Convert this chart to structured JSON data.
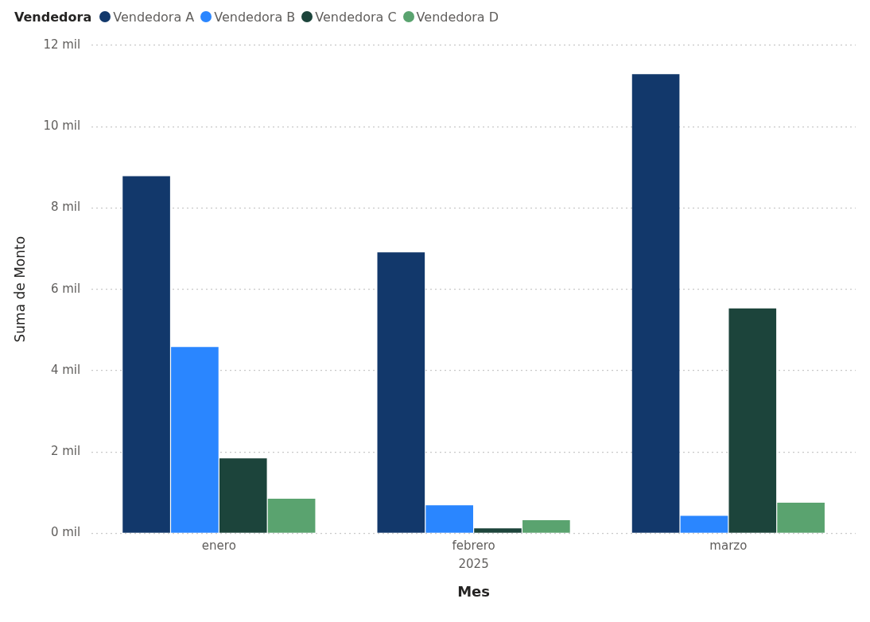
{
  "chart_data": {
    "type": "bar",
    "xlabel": "Mes",
    "ylabel": "Suma de Monto",
    "legend_title": "Vendedora",
    "legend": "top left",
    "grid": "y",
    "categories": [
      "enero",
      "febrero",
      "marzo"
    ],
    "annotations": [
      "2025"
    ],
    "ylim": [
      0,
      12
    ],
    "yticks": [
      {
        "value": 0,
        "label": "0 mil"
      },
      {
        "value": 2,
        "label": "2 mil"
      },
      {
        "value": 4,
        "label": "4 mil"
      },
      {
        "value": 6,
        "label": "6 mil"
      },
      {
        "value": 8,
        "label": "8 mil"
      },
      {
        "value": 10,
        "label": "10 mil"
      },
      {
        "value": 12,
        "label": "12 mil"
      }
    ],
    "series": [
      {
        "name": "Vendedora A",
        "color": "#12386b",
        "values": [
          8.78,
          6.91,
          11.29
        ]
      },
      {
        "name": "Vendedora B",
        "color": "#2a86ff",
        "values": [
          4.58,
          0.69,
          0.43
        ]
      },
      {
        "name": "Vendedora C",
        "color": "#1c443b",
        "values": [
          1.84,
          0.12,
          5.53
        ]
      },
      {
        "name": "Vendedora D",
        "color": "#5aa36f",
        "values": [
          0.85,
          0.32,
          0.75
        ]
      }
    ]
  }
}
